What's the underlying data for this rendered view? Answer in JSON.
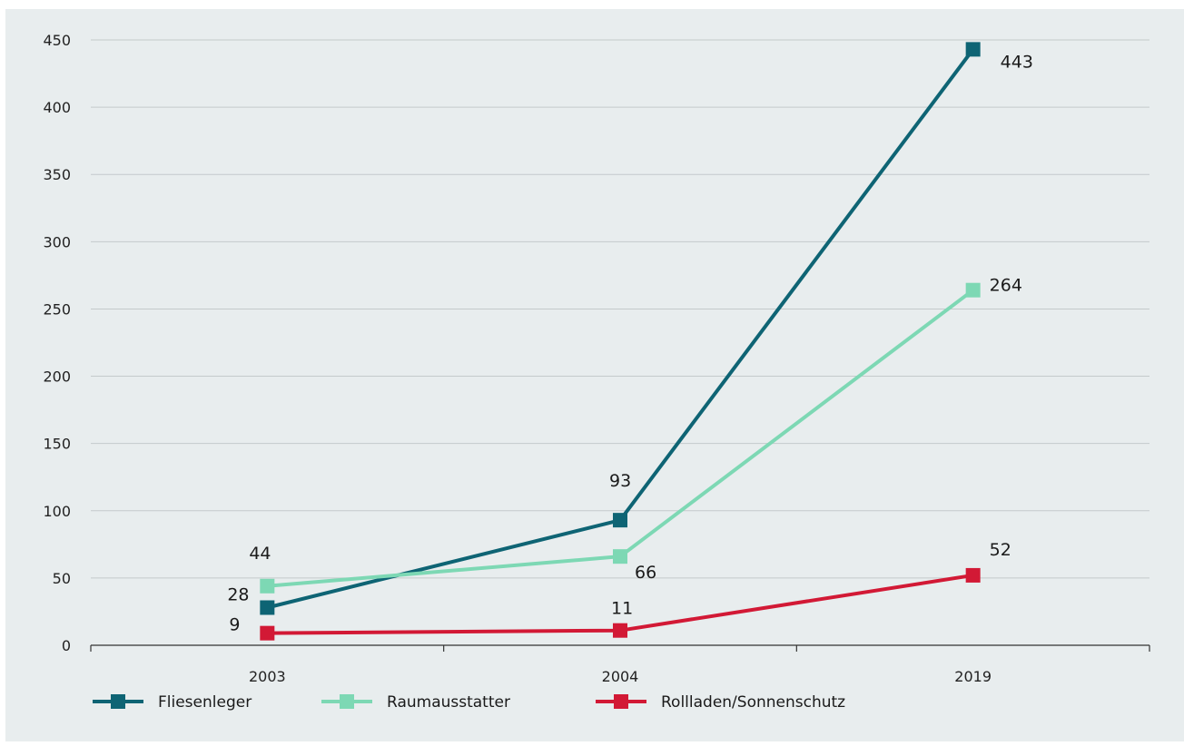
{
  "chart_data": {
    "type": "line",
    "title": "",
    "xlabel": "",
    "ylabel": "",
    "categories": [
      "2003",
      "2004",
      "2019"
    ],
    "ylim": [
      0,
      450
    ],
    "yticks": [
      "0",
      "50",
      "100",
      "150",
      "200",
      "250",
      "300",
      "350",
      "400",
      "450"
    ],
    "grid": true,
    "legend": "bottom-left",
    "series": [
      {
        "name": "Fliesenleger",
        "color": "#0e6474",
        "values": [
          28,
          93,
          443
        ],
        "labels": [
          "28",
          "93",
          "443"
        ]
      },
      {
        "name": "Raumausstatter",
        "color": "#7dd8b4",
        "values": [
          44,
          66,
          264
        ],
        "labels": [
          "44",
          "66",
          "264"
        ]
      },
      {
        "name": "Rollladen/Sonnenschutz",
        "color": "#d21935",
        "values": [
          9,
          11,
          52
        ],
        "labels": [
          "9",
          "11",
          "52"
        ]
      }
    ]
  }
}
